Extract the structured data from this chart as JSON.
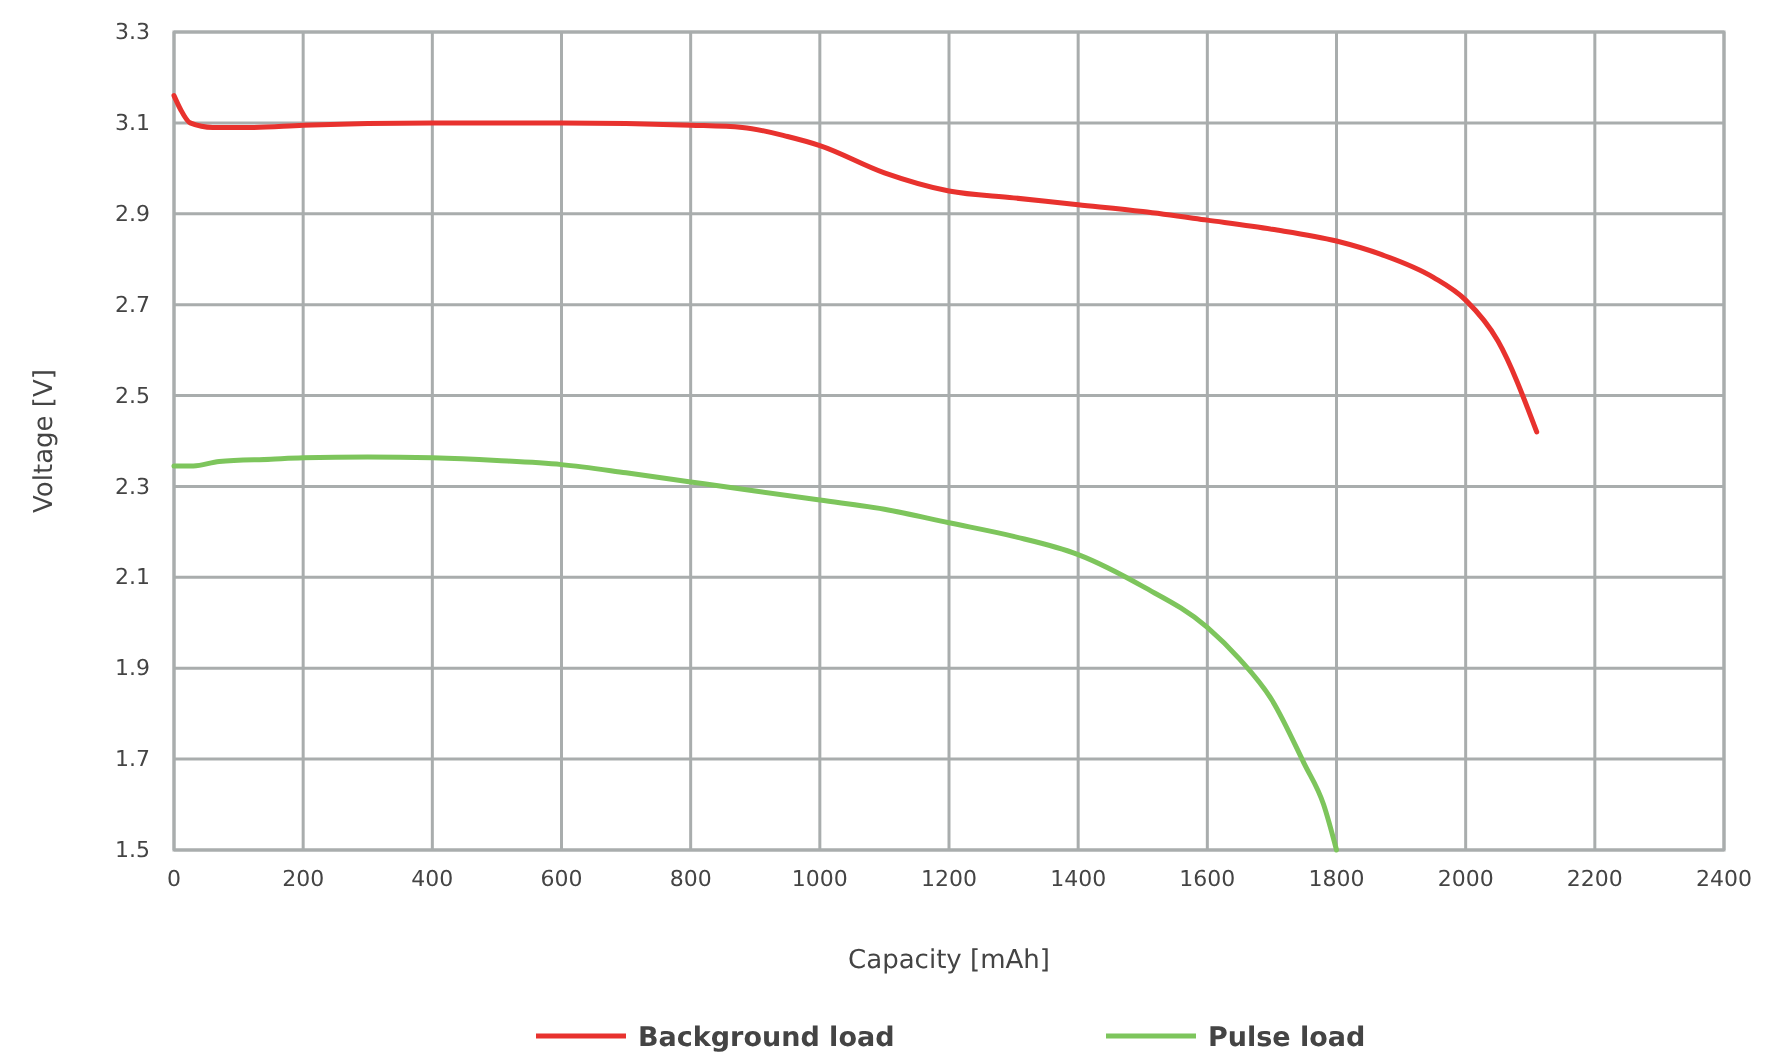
{
  "chart_data": {
    "type": "line",
    "xlabel": "Capacity [mAh]",
    "ylabel": "Voltage [V]",
    "xlim": [
      0,
      2400
    ],
    "xticks": [
      0,
      200,
      400,
      600,
      800,
      1000,
      1200,
      1400,
      1600,
      1800,
      2000,
      2200,
      2400
    ],
    "ylim": [
      1.5,
      3.3
    ],
    "yticks": [
      1.5,
      1.7,
      1.9,
      2.1,
      2.3,
      2.5,
      2.7,
      2.9,
      3.1,
      3.3
    ],
    "grid": true,
    "legend": "bottom",
    "marker": "none",
    "line_style": "solid",
    "series": [
      {
        "name": "Background load",
        "color": "#e8322e",
        "x": [
          0,
          10,
          25,
          60,
          120,
          200,
          400,
          600,
          800,
          880,
          950,
          1000,
          1100,
          1200,
          1300,
          1400,
          1500,
          1600,
          1700,
          1800,
          1870,
          1950,
          2000,
          2050,
          2110
        ],
        "values": [
          3.16,
          3.13,
          3.1,
          3.09,
          3.09,
          3.095,
          3.1,
          3.1,
          3.095,
          3.09,
          3.07,
          3.05,
          2.99,
          2.95,
          2.935,
          2.92,
          2.905,
          2.886,
          2.866,
          2.84,
          2.81,
          2.76,
          2.71,
          2.62,
          2.42
        ]
      },
      {
        "name": "Pulse load",
        "color": "#7dc55c",
        "x": [
          0,
          30,
          70,
          150,
          200,
          300,
          400,
          500,
          600,
          700,
          800,
          900,
          1000,
          1100,
          1200,
          1300,
          1400,
          1500,
          1600,
          1650,
          1700,
          1750,
          1780,
          1800
        ],
        "values": [
          2.345,
          2.345,
          2.355,
          2.36,
          2.363,
          2.365,
          2.363,
          2.357,
          2.348,
          2.33,
          2.31,
          2.29,
          2.27,
          2.25,
          2.22,
          2.19,
          2.15,
          2.08,
          1.99,
          1.92,
          1.83,
          1.69,
          1.6,
          1.5
        ]
      }
    ]
  }
}
